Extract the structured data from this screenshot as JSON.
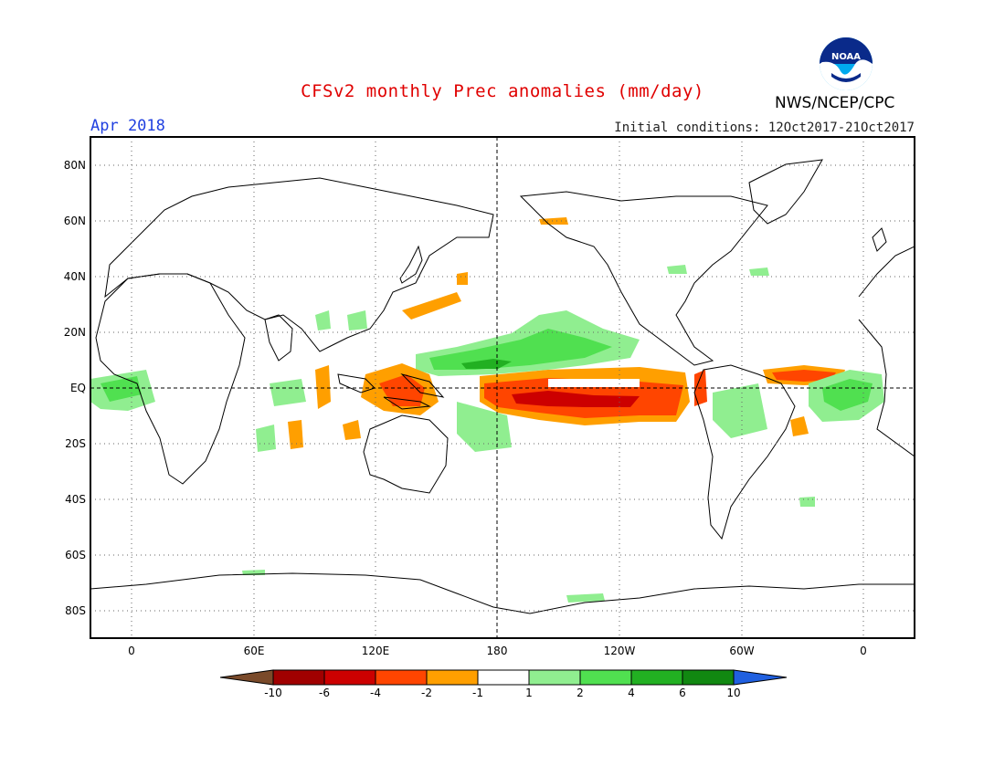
{
  "header": {
    "title": "CFSv2 monthly Prec anomalies (mm/day)",
    "agency": "NWS/NCEP/CPC",
    "logo_text": "NOAA",
    "month": "Apr 2018",
    "initial_conditions": "Initial conditions: 12Oct2017-21Oct2017"
  },
  "axes": {
    "lat_labels": [
      "80N",
      "60N",
      "40N",
      "20N",
      "EQ",
      "20S",
      "40S",
      "60S",
      "80S"
    ],
    "lon_labels": [
      "0",
      "60E",
      "120E",
      "180",
      "120W",
      "60W",
      "0"
    ]
  },
  "colorbar": {
    "labels": [
      "-10",
      "-6",
      "-4",
      "-2",
      "-1",
      "1",
      "2",
      "4",
      "6",
      "10"
    ],
    "colors": [
      "#7a4a2a",
      "#a00000",
      "#cc0000",
      "#ff4500",
      "#ff9f00",
      "#ffffff",
      "#90ee90",
      "#50e050",
      "#22b022",
      "#118811",
      "#2060e0"
    ]
  },
  "colors": {
    "dry_light": "#ff9f00",
    "dry_medium": "#ff4500",
    "dry_strong": "#cc0000",
    "wet_light": "#90ee90",
    "wet_medium": "#50e050",
    "wet_strong": "#22b022"
  }
}
